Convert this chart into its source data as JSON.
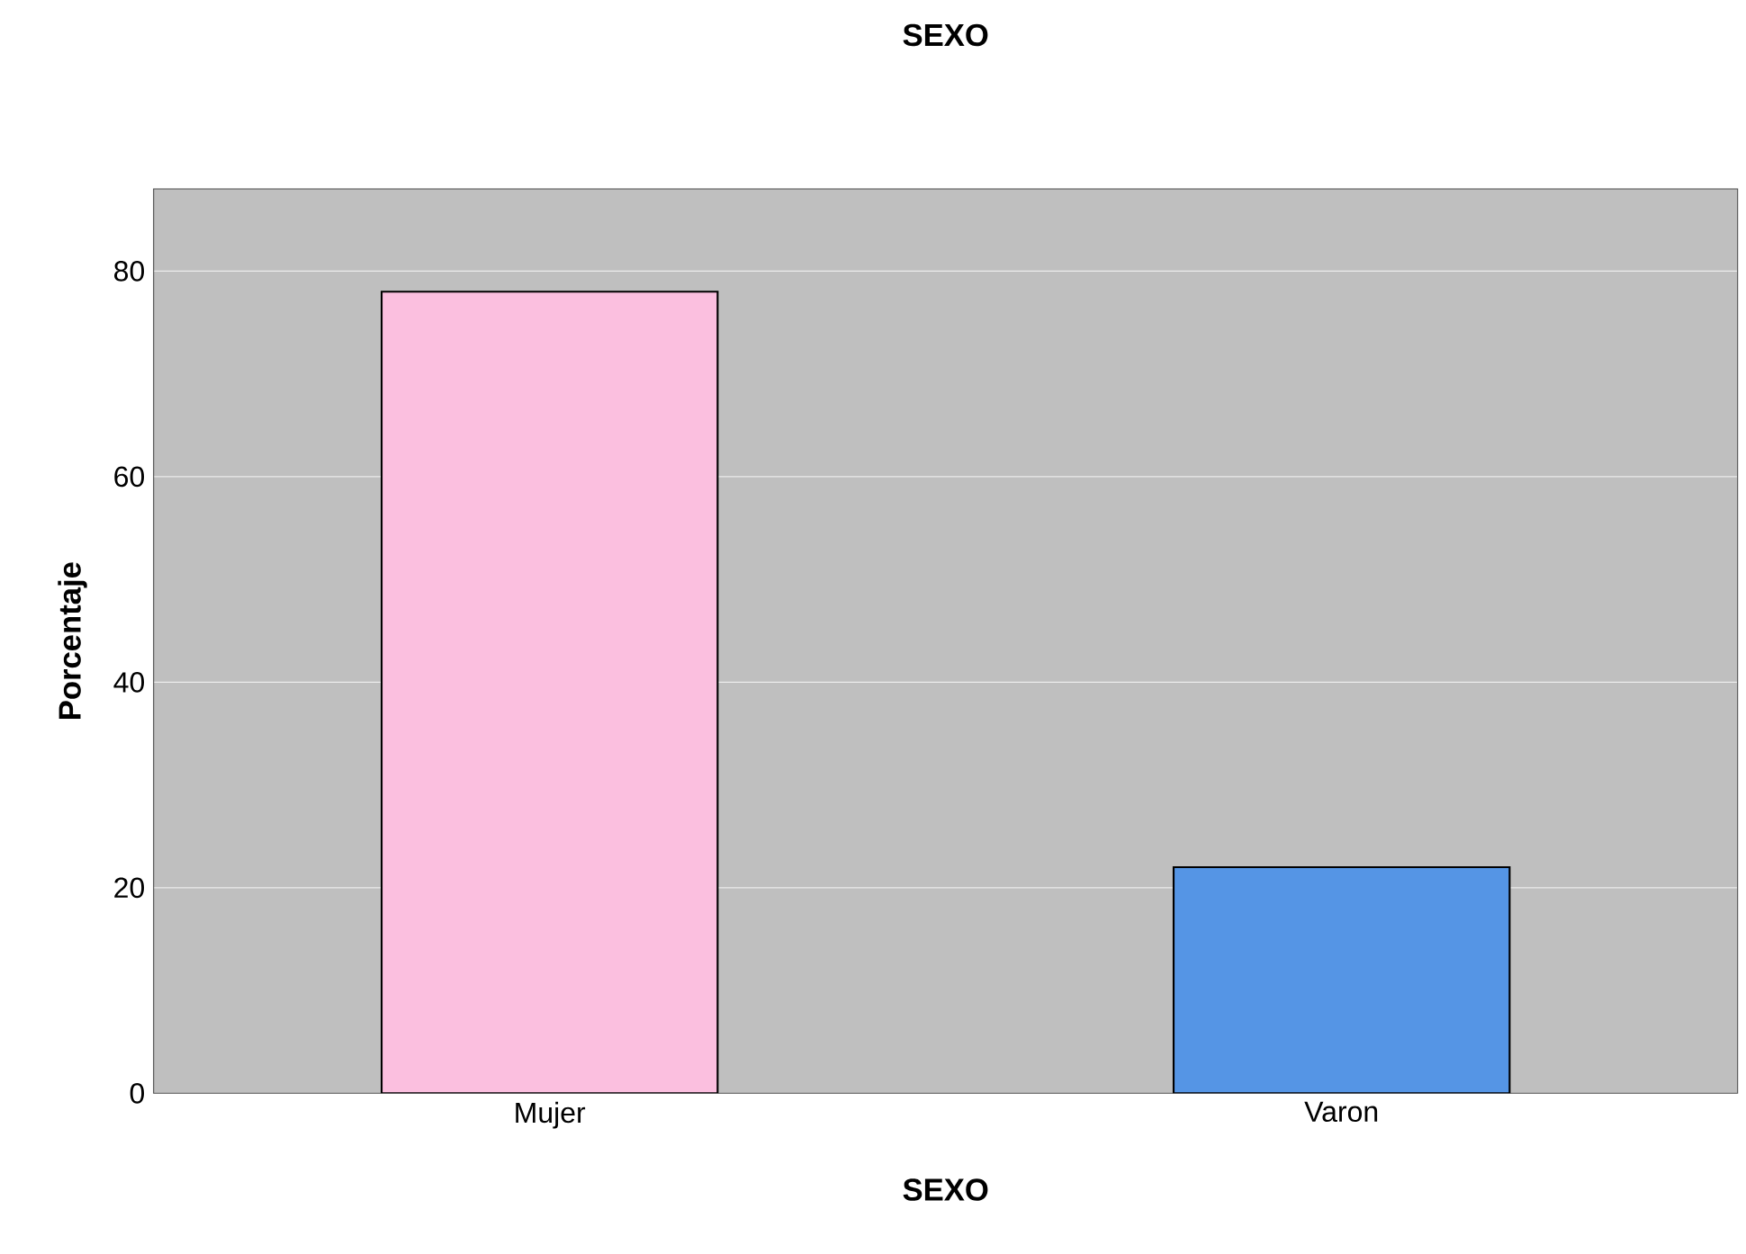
{
  "chart_data": {
    "type": "bar",
    "title": "SEXO",
    "xlabel": "SEXO",
    "ylabel": "Porcentaje",
    "categories": [
      "Mujer",
      "Varon"
    ],
    "values": [
      78,
      22
    ],
    "colors": [
      "#fbbfdf",
      "#5595e5"
    ],
    "ylim": [
      0,
      88
    ],
    "yticks": [
      0,
      20,
      40,
      60,
      80
    ],
    "grid": "y"
  }
}
